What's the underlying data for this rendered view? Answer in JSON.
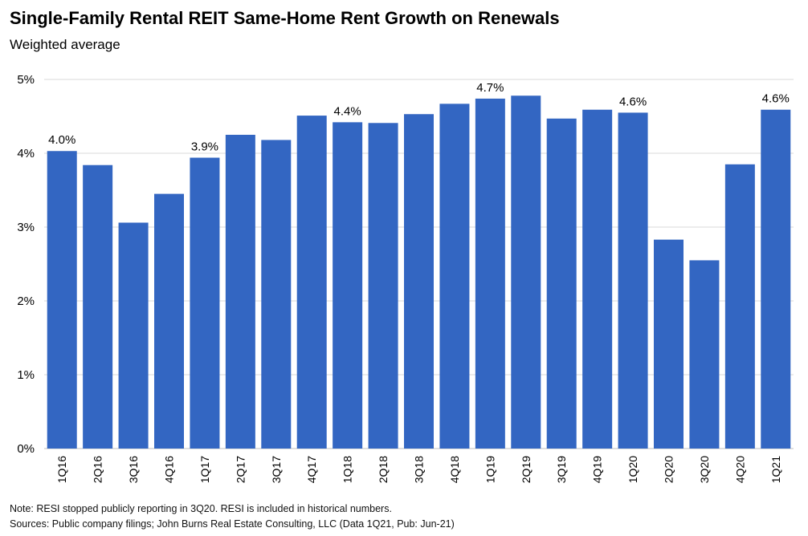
{
  "title": "Single-Family Rental REIT Same-Home Rent Growth on Renewals",
  "subtitle": "Weighted average",
  "notes": {
    "note": "Note: RESI stopped publicly reporting in 3Q20. RESI is included in historical numbers.",
    "sources": "Sources: Public company filings; John Burns Real Estate Consulting, LLC (Data 1Q21, Pub: Jun-21)"
  },
  "colors": {
    "bar": "#3366c2",
    "grid": "#d9d9d9",
    "axis": "#bfbfbf"
  },
  "chart_data": {
    "type": "bar",
    "categories": [
      "1Q16",
      "2Q16",
      "3Q16",
      "4Q16",
      "1Q17",
      "2Q17",
      "3Q17",
      "4Q17",
      "1Q18",
      "2Q18",
      "3Q18",
      "4Q18",
      "1Q19",
      "2Q19",
      "3Q19",
      "4Q19",
      "1Q20",
      "2Q20",
      "3Q20",
      "4Q20",
      "1Q21"
    ],
    "values": [
      4.03,
      3.84,
      3.06,
      3.45,
      3.94,
      4.25,
      4.18,
      4.51,
      4.42,
      4.41,
      4.53,
      4.67,
      4.74,
      4.78,
      4.47,
      4.59,
      4.55,
      2.83,
      2.55,
      3.85,
      4.59
    ],
    "data_labels": {
      "0": "4.0%",
      "4": "3.9%",
      "8": "4.4%",
      "12": "4.7%",
      "16": "4.6%",
      "20": "4.6%"
    },
    "yticks": [
      "0%",
      "1%",
      "2%",
      "3%",
      "4%",
      "5%"
    ],
    "ylim": [
      0,
      5
    ],
    "grid": true,
    "legend": "none",
    "xlabel": "",
    "ylabel": ""
  }
}
